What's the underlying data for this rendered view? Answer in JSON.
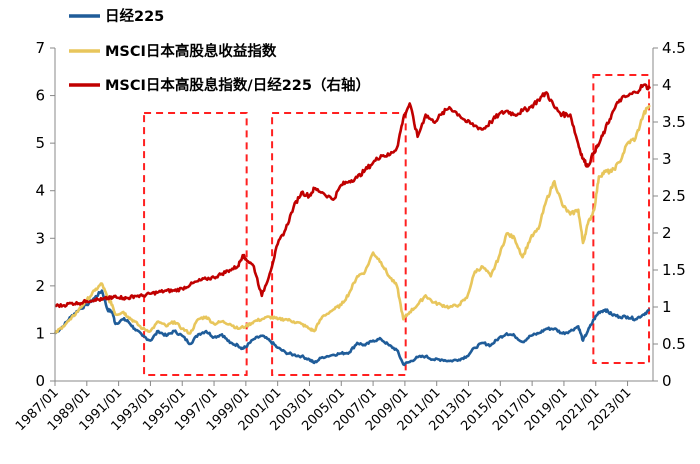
{
  "chart_data": {
    "type": "line",
    "title": "",
    "legend_position": "top-left",
    "grid": false,
    "x_tick_labels": [
      "1987/01",
      "1989/01",
      "1991/01",
      "1993/01",
      "1995/01",
      "1997/01",
      "1999/01",
      "2001/01",
      "2003/01",
      "2005/01",
      "2007/01",
      "2009/01",
      "2011/01",
      "2013/01",
      "2015/01",
      "2017/01",
      "2019/01",
      "2021/01",
      "2023/01"
    ],
    "xlim": [
      1987.0,
      2024.6
    ],
    "left_axis": {
      "ylim": [
        0,
        7
      ],
      "ticks": [
        "0",
        "1",
        "2",
        "3",
        "4",
        "5",
        "6",
        "7"
      ]
    },
    "right_axis": {
      "ylim": [
        0,
        4.5
      ],
      "ticks": [
        "0",
        "0.5",
        "1",
        "1.5",
        "2",
        "2.5",
        "3",
        "3.5",
        "4",
        "4.5"
      ]
    },
    "series": [
      {
        "name": "日经225",
        "axis": "left",
        "color": "#1F5C99",
        "points": [
          [
            1987.0,
            1.0
          ],
          [
            1987.5,
            1.15
          ],
          [
            1988.0,
            1.35
          ],
          [
            1988.5,
            1.5
          ],
          [
            1989.0,
            1.6
          ],
          [
            1989.5,
            1.75
          ],
          [
            1989.95,
            1.9
          ],
          [
            1990.3,
            1.5
          ],
          [
            1990.6,
            1.45
          ],
          [
            1990.8,
            1.2
          ],
          [
            1991.3,
            1.3
          ],
          [
            1991.6,
            1.25
          ],
          [
            1992.0,
            1.1
          ],
          [
            1992.5,
            0.95
          ],
          [
            1993.0,
            0.85
          ],
          [
            1993.5,
            1.05
          ],
          [
            1994.0,
            0.95
          ],
          [
            1994.5,
            1.05
          ],
          [
            1995.0,
            0.95
          ],
          [
            1995.5,
            0.78
          ],
          [
            1996.0,
            0.98
          ],
          [
            1996.5,
            1.05
          ],
          [
            1997.0,
            0.92
          ],
          [
            1997.5,
            0.98
          ],
          [
            1998.0,
            0.8
          ],
          [
            1998.5,
            0.75
          ],
          [
            1998.8,
            0.68
          ],
          [
            1999.0,
            0.72
          ],
          [
            1999.5,
            0.88
          ],
          [
            2000.0,
            0.95
          ],
          [
            2000.5,
            0.85
          ],
          [
            2001.0,
            0.7
          ],
          [
            2001.5,
            0.6
          ],
          [
            2002.0,
            0.55
          ],
          [
            2002.5,
            0.52
          ],
          [
            2003.0,
            0.45
          ],
          [
            2003.3,
            0.38
          ],
          [
            2003.8,
            0.5
          ],
          [
            2004.5,
            0.55
          ],
          [
            2005.0,
            0.58
          ],
          [
            2005.5,
            0.6
          ],
          [
            2006.0,
            0.8
          ],
          [
            2006.5,
            0.75
          ],
          [
            2007.0,
            0.85
          ],
          [
            2007.5,
            0.88
          ],
          [
            2008.0,
            0.75
          ],
          [
            2008.5,
            0.65
          ],
          [
            2008.9,
            0.35
          ],
          [
            2009.3,
            0.4
          ],
          [
            2009.8,
            0.5
          ],
          [
            2010.3,
            0.52
          ],
          [
            2010.8,
            0.45
          ],
          [
            2011.3,
            0.45
          ],
          [
            2011.8,
            0.42
          ],
          [
            2012.4,
            0.45
          ],
          [
            2012.9,
            0.52
          ],
          [
            2013.4,
            0.7
          ],
          [
            2013.9,
            0.8
          ],
          [
            2014.4,
            0.75
          ],
          [
            2014.9,
            0.9
          ],
          [
            2015.4,
            1.0
          ],
          [
            2015.9,
            0.95
          ],
          [
            2016.4,
            0.82
          ],
          [
            2016.9,
            0.95
          ],
          [
            2017.4,
            1.0
          ],
          [
            2017.9,
            1.1
          ],
          [
            2018.4,
            1.1
          ],
          [
            2018.9,
            1.0
          ],
          [
            2019.4,
            1.05
          ],
          [
            2019.9,
            1.15
          ],
          [
            2020.2,
            0.85
          ],
          [
            2020.5,
            1.05
          ],
          [
            2020.9,
            1.3
          ],
          [
            2021.2,
            1.45
          ],
          [
            2021.6,
            1.5
          ],
          [
            2022.0,
            1.4
          ],
          [
            2022.5,
            1.35
          ],
          [
            2023.0,
            1.35
          ],
          [
            2023.5,
            1.3
          ],
          [
            2024.0,
            1.4
          ],
          [
            2024.4,
            1.5
          ]
        ]
      },
      {
        "name": "MSCI日本高股息收益指数",
        "axis": "left",
        "color": "#E8C65C",
        "points": [
          [
            1987.0,
            1.0
          ],
          [
            1987.5,
            1.15
          ],
          [
            1988.0,
            1.3
          ],
          [
            1988.5,
            1.5
          ],
          [
            1989.0,
            1.7
          ],
          [
            1989.5,
            1.9
          ],
          [
            1989.95,
            2.05
          ],
          [
            1990.3,
            1.75
          ],
          [
            1990.6,
            1.6
          ],
          [
            1990.8,
            1.4
          ],
          [
            1991.3,
            1.45
          ],
          [
            1991.6,
            1.35
          ],
          [
            1992.0,
            1.25
          ],
          [
            1992.5,
            1.1
          ],
          [
            1993.0,
            1.05
          ],
          [
            1993.5,
            1.25
          ],
          [
            1994.0,
            1.15
          ],
          [
            1994.5,
            1.25
          ],
          [
            1995.0,
            1.1
          ],
          [
            1995.5,
            1.0
          ],
          [
            1996.0,
            1.3
          ],
          [
            1996.5,
            1.35
          ],
          [
            1997.0,
            1.2
          ],
          [
            1997.5,
            1.25
          ],
          [
            1998.0,
            1.2
          ],
          [
            1998.5,
            1.1
          ],
          [
            1999.0,
            1.15
          ],
          [
            1999.5,
            1.25
          ],
          [
            2000.0,
            1.3
          ],
          [
            2000.5,
            1.35
          ],
          [
            2001.0,
            1.3
          ],
          [
            2001.5,
            1.3
          ],
          [
            2002.0,
            1.25
          ],
          [
            2002.5,
            1.2
          ],
          [
            2003.0,
            1.1
          ],
          [
            2003.3,
            1.05
          ],
          [
            2003.8,
            1.35
          ],
          [
            2004.5,
            1.5
          ],
          [
            2005.0,
            1.6
          ],
          [
            2005.5,
            1.85
          ],
          [
            2006.0,
            2.2
          ],
          [
            2006.5,
            2.3
          ],
          [
            2007.0,
            2.7
          ],
          [
            2007.5,
            2.5
          ],
          [
            2008.0,
            2.2
          ],
          [
            2008.5,
            2.0
          ],
          [
            2008.9,
            1.3
          ],
          [
            2009.3,
            1.45
          ],
          [
            2009.8,
            1.6
          ],
          [
            2010.3,
            1.8
          ],
          [
            2010.8,
            1.65
          ],
          [
            2011.3,
            1.6
          ],
          [
            2011.8,
            1.55
          ],
          [
            2012.4,
            1.6
          ],
          [
            2012.9,
            1.75
          ],
          [
            2013.4,
            2.3
          ],
          [
            2013.9,
            2.4
          ],
          [
            2014.4,
            2.2
          ],
          [
            2014.9,
            2.6
          ],
          [
            2015.4,
            3.1
          ],
          [
            2015.9,
            3.0
          ],
          [
            2016.4,
            2.6
          ],
          [
            2016.9,
            3.0
          ],
          [
            2017.4,
            3.2
          ],
          [
            2017.9,
            3.8
          ],
          [
            2018.4,
            4.2
          ],
          [
            2018.9,
            3.7
          ],
          [
            2019.4,
            3.5
          ],
          [
            2019.9,
            3.6
          ],
          [
            2020.2,
            2.9
          ],
          [
            2020.5,
            3.3
          ],
          [
            2020.9,
            3.6
          ],
          [
            2021.2,
            4.3
          ],
          [
            2021.6,
            4.4
          ],
          [
            2022.0,
            4.4
          ],
          [
            2022.5,
            4.6
          ],
          [
            2023.0,
            5.0
          ],
          [
            2023.5,
            5.1
          ],
          [
            2024.0,
            5.6
          ],
          [
            2024.4,
            5.8
          ]
        ]
      },
      {
        "name": "MSCI日本高股息指数/日经225（右轴）",
        "axis": "right",
        "color": "#C00000",
        "points": [
          [
            1987.0,
            1.02
          ],
          [
            1987.5,
            1.02
          ],
          [
            1988.0,
            1.05
          ],
          [
            1988.5,
            1.05
          ],
          [
            1989.0,
            1.08
          ],
          [
            1989.5,
            1.1
          ],
          [
            1989.95,
            1.1
          ],
          [
            1990.3,
            1.12
          ],
          [
            1990.6,
            1.12
          ],
          [
            1990.8,
            1.15
          ],
          [
            1991.3,
            1.12
          ],
          [
            1991.6,
            1.12
          ],
          [
            1992.0,
            1.15
          ],
          [
            1992.5,
            1.15
          ],
          [
            1993.0,
            1.18
          ],
          [
            1993.5,
            1.2
          ],
          [
            1994.0,
            1.22
          ],
          [
            1994.5,
            1.22
          ],
          [
            1995.0,
            1.25
          ],
          [
            1995.5,
            1.3
          ],
          [
            1996.0,
            1.35
          ],
          [
            1996.5,
            1.38
          ],
          [
            1997.0,
            1.4
          ],
          [
            1997.5,
            1.45
          ],
          [
            1998.0,
            1.5
          ],
          [
            1998.5,
            1.55
          ],
          [
            1998.8,
            1.7
          ],
          [
            1999.0,
            1.65
          ],
          [
            1999.5,
            1.55
          ],
          [
            2000.0,
            1.15
          ],
          [
            2000.5,
            1.45
          ],
          [
            2001.0,
            1.85
          ],
          [
            2001.5,
            2.05
          ],
          [
            2002.0,
            2.35
          ],
          [
            2002.5,
            2.55
          ],
          [
            2003.0,
            2.5
          ],
          [
            2003.3,
            2.6
          ],
          [
            2003.8,
            2.55
          ],
          [
            2004.5,
            2.45
          ],
          [
            2005.0,
            2.65
          ],
          [
            2005.5,
            2.7
          ],
          [
            2006.0,
            2.75
          ],
          [
            2006.5,
            2.85
          ],
          [
            2007.0,
            2.95
          ],
          [
            2007.5,
            3.05
          ],
          [
            2008.0,
            3.05
          ],
          [
            2008.5,
            3.15
          ],
          [
            2008.9,
            3.55
          ],
          [
            2009.3,
            3.75
          ],
          [
            2009.8,
            3.3
          ],
          [
            2010.3,
            3.6
          ],
          [
            2010.8,
            3.5
          ],
          [
            2011.3,
            3.6
          ],
          [
            2011.8,
            3.7
          ],
          [
            2012.4,
            3.6
          ],
          [
            2012.9,
            3.5
          ],
          [
            2013.4,
            3.45
          ],
          [
            2013.9,
            3.4
          ],
          [
            2014.4,
            3.5
          ],
          [
            2014.9,
            3.6
          ],
          [
            2015.4,
            3.65
          ],
          [
            2015.9,
            3.6
          ],
          [
            2016.4,
            3.65
          ],
          [
            2016.9,
            3.7
          ],
          [
            2017.4,
            3.8
          ],
          [
            2017.9,
            3.9
          ],
          [
            2018.4,
            3.7
          ],
          [
            2018.9,
            3.6
          ],
          [
            2019.4,
            3.6
          ],
          [
            2019.9,
            3.2
          ],
          [
            2020.2,
            3.0
          ],
          [
            2020.5,
            2.9
          ],
          [
            2020.9,
            3.1
          ],
          [
            2021.2,
            3.2
          ],
          [
            2021.6,
            3.4
          ],
          [
            2022.0,
            3.6
          ],
          [
            2022.5,
            3.8
          ],
          [
            2023.0,
            3.85
          ],
          [
            2023.5,
            3.9
          ],
          [
            2024.0,
            4.0
          ],
          [
            2024.4,
            3.95
          ]
        ]
      }
    ],
    "highlight_periods": [
      [
        1992.6,
        1999.05
      ],
      [
        2000.65,
        2009.05
      ],
      [
        2020.85,
        2024.35
      ]
    ]
  }
}
